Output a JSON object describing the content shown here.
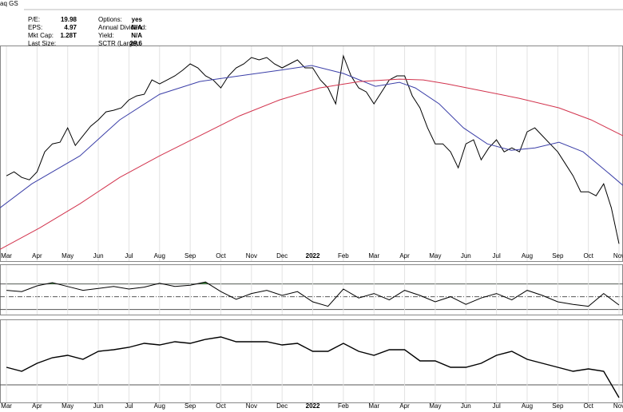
{
  "header": {
    "symbol": "aq GS",
    "fields": [
      {
        "label": "P/E:",
        "value": "19.98"
      },
      {
        "label": "EPS:",
        "value": "4.97"
      },
      {
        "label": "Mkt Cap:",
        "value": "1.28T"
      },
      {
        "label": "Last Size:"
      },
      {
        "label": "Options:",
        "value": "yes"
      },
      {
        "label": "Annual Dividend:",
        "value": "N/A"
      },
      {
        "label": "Yield:",
        "value": "N/A"
      },
      {
        "label": "SCTR (Large):",
        "value": "29.6"
      }
    ]
  },
  "chart_data": [
    {
      "type": "line",
      "xlim": [
        -0.21,
        20.13
      ],
      "ylim": [
        80,
        160
      ],
      "xticks": [
        {
          "value": 0,
          "label": "Mar"
        },
        {
          "value": 1,
          "label": "Apr"
        },
        {
          "value": 2,
          "label": "May"
        },
        {
          "value": 3,
          "label": "Jun"
        },
        {
          "value": 4,
          "label": "Jul"
        },
        {
          "value": 5,
          "label": "Aug"
        },
        {
          "value": 6,
          "label": "Sep"
        },
        {
          "value": 7,
          "label": "Oct"
        },
        {
          "value": 8,
          "label": "Nov"
        },
        {
          "value": 9,
          "label": "Dec"
        },
        {
          "value": 10,
          "label": "2022"
        },
        {
          "value": 11,
          "label": "Feb"
        },
        {
          "value": 12,
          "label": "Mar"
        },
        {
          "value": 13,
          "label": "Apr"
        },
        {
          "value": 14,
          "label": "May"
        },
        {
          "value": 15,
          "label": "Jun"
        },
        {
          "value": 16,
          "label": "Jul"
        },
        {
          "value": 17,
          "label": "Aug"
        },
        {
          "value": 18,
          "label": "Sep"
        },
        {
          "value": 19,
          "label": "Oct"
        },
        {
          "value": 20,
          "label": "Nov"
        }
      ],
      "grid": true,
      "series": [
        {
          "color": "#000000",
          "x": [
            0,
            0.25,
            0.5,
            0.75,
            1,
            1.25,
            1.5,
            1.75,
            2,
            2.25,
            2.5,
            2.75,
            3,
            3.25,
            3.5,
            3.75,
            4,
            4.25,
            4.5,
            4.75,
            5,
            5.25,
            5.5,
            5.75,
            6,
            6.25,
            6.5,
            6.75,
            7,
            7.25,
            7.5,
            7.75,
            8,
            8.25,
            8.5,
            8.75,
            9,
            9.25,
            9.5,
            9.75,
            10,
            10.25,
            10.5,
            10.75,
            11,
            11.25,
            11.5,
            11.75,
            12,
            12.25,
            12.5,
            12.75,
            13,
            13.25,
            13.5,
            13.75,
            14,
            14.25,
            14.5,
            14.75,
            15,
            15.25,
            15.5,
            15.75,
            16,
            16.25,
            16.5,
            16.75,
            17,
            17.25,
            17.5,
            17.75,
            18,
            18.25,
            18.5,
            18.75,
            19,
            19.25,
            19.5,
            19.75,
            20
          ],
          "values": [
            111.4,
            112.9,
            110.8,
            109.9,
            112.9,
            120.4,
            123.4,
            124,
            129.4,
            122.8,
            126.4,
            130,
            132.4,
            135.4,
            136,
            136.9,
            139.9,
            141.4,
            142,
            147.4,
            145.9,
            147.4,
            148.9,
            151,
            153.4,
            151.9,
            148.9,
            147.4,
            144.4,
            148.9,
            151.9,
            153.4,
            155.8,
            154.9,
            155.8,
            153.4,
            151.9,
            153.4,
            154.9,
            151.9,
            151.9,
            147.4,
            144.4,
            138.4,
            156.4,
            148.9,
            144.4,
            142.9,
            138.4,
            142.9,
            147.4,
            148.9,
            148.9,
            141.4,
            136.9,
            129.4,
            123.4,
            123.4,
            120.4,
            114.4,
            123.4,
            124.9,
            117.4,
            121.9,
            124.9,
            120.4,
            121.9,
            120.4,
            127.9,
            129.4,
            126.4,
            123.4,
            120.4,
            115.9,
            111.4,
            105.4,
            105.4,
            103.9,
            108.4,
            99.4,
            85.9
          ]
        },
        {
          "color": "#3b3fa8",
          "x": [
            -0.21,
            0.83,
            2.4,
            3.7,
            5.0,
            6.31,
            7.61,
            8.92,
            9.96,
            11.0,
            12.05,
            12.83,
            13.35,
            14.13,
            14.92,
            15.7,
            16.48,
            17.26,
            18.04,
            18.83,
            19.61,
            20.13
          ],
          "values": [
            99.4,
            108.4,
            118.9,
            132.4,
            142,
            146.8,
            148.9,
            151,
            152.8,
            149.8,
            145,
            146.5,
            144.4,
            138.4,
            129.4,
            123.4,
            121,
            121.9,
            124,
            120.4,
            112.9,
            107.8
          ]
        },
        {
          "color": "#d2334d",
          "x": [
            -0.21,
            1.09,
            2.4,
            3.7,
            5.0,
            6.31,
            7.61,
            8.92,
            10.22,
            11.53,
            12.83,
            13.61,
            14.39,
            15.44,
            16.74,
            18.04,
            19.09,
            20.13
          ],
          "values": [
            83.8,
            91.9,
            100.9,
            110.8,
            118.9,
            126.4,
            133.9,
            139.9,
            144.4,
            146.8,
            147.7,
            147.4,
            145.9,
            143.5,
            140.5,
            136.9,
            132.4,
            126.4
          ]
        }
      ]
    },
    {
      "type": "line",
      "xlim": [
        -0.21,
        20.13
      ],
      "ylim": [
        22,
        82
      ],
      "series": [
        {
          "color": "#000000",
          "x": [
            0,
            0.5,
            1,
            1.5,
            2,
            2.5,
            3,
            3.5,
            4,
            4.5,
            5,
            5.5,
            6,
            6.5,
            7,
            7.5,
            8,
            8.5,
            9,
            9.5,
            10,
            10.5,
            11,
            11.5,
            12,
            12.5,
            13,
            13.5,
            14,
            14.5,
            15,
            15.5,
            16,
            16.5,
            17,
            17.5,
            18,
            18.5,
            19,
            19.5,
            20
          ],
          "values": [
            60,
            58,
            67,
            72,
            66,
            60,
            63,
            66,
            62,
            65,
            71,
            66,
            68,
            73,
            58,
            46,
            55,
            60,
            52,
            58,
            42,
            35,
            62,
            48,
            55,
            45,
            60,
            52,
            42,
            50,
            38,
            48,
            55,
            45,
            60,
            52,
            42,
            38,
            35,
            55,
            37
          ]
        }
      ]
    },
    {
      "type": "line",
      "xlim": [
        -0.21,
        20.13
      ],
      "ylim": [
        0,
        100
      ],
      "xticks": [
        {
          "value": 0,
          "label": "Mar"
        },
        {
          "value": 1,
          "label": "Apr"
        },
        {
          "value": 2,
          "label": "May"
        },
        {
          "value": 3,
          "label": "Jun"
        },
        {
          "value": 4,
          "label": "Jul"
        },
        {
          "value": 5,
          "label": "Aug"
        },
        {
          "value": 6,
          "label": "Sep"
        },
        {
          "value": 7,
          "label": "Oct"
        },
        {
          "value": 8,
          "label": "Nov"
        },
        {
          "value": 9,
          "label": "Dec"
        },
        {
          "value": 10,
          "label": "2022"
        },
        {
          "value": 11,
          "label": "Feb"
        },
        {
          "value": 12,
          "label": "Mar"
        },
        {
          "value": 13,
          "label": "Apr"
        },
        {
          "value": 14,
          "label": "May"
        },
        {
          "value": 15,
          "label": "Jun"
        },
        {
          "value": 16,
          "label": "Jul"
        },
        {
          "value": 17,
          "label": "Aug"
        },
        {
          "value": 18,
          "label": "Sep"
        },
        {
          "value": 19,
          "label": "Oct"
        },
        {
          "value": 20,
          "label": "Nov"
        }
      ],
      "grid": true,
      "series": [
        {
          "color": "#000000",
          "x": [
            0,
            0.5,
            1,
            1.5,
            2,
            2.5,
            3,
            3.5,
            4,
            4.5,
            5,
            5.5,
            6,
            6.5,
            7,
            7.5,
            8,
            8.5,
            9,
            9.5,
            10,
            10.5,
            11,
            11.5,
            12,
            12.5,
            13,
            13.5,
            14,
            14.5,
            15,
            15.5,
            16,
            16.5,
            17,
            17.5,
            18,
            18.5,
            19,
            19.5,
            20
          ],
          "values": [
            45,
            40,
            50,
            57,
            60,
            55,
            65,
            67,
            70,
            75,
            73,
            77,
            75,
            80,
            83,
            77,
            77,
            77,
            73,
            75,
            65,
            65,
            75,
            65,
            60,
            67,
            67,
            53,
            53,
            45,
            45,
            50,
            60,
            65,
            55,
            50,
            45,
            40,
            43,
            40,
            7
          ]
        }
      ]
    }
  ]
}
